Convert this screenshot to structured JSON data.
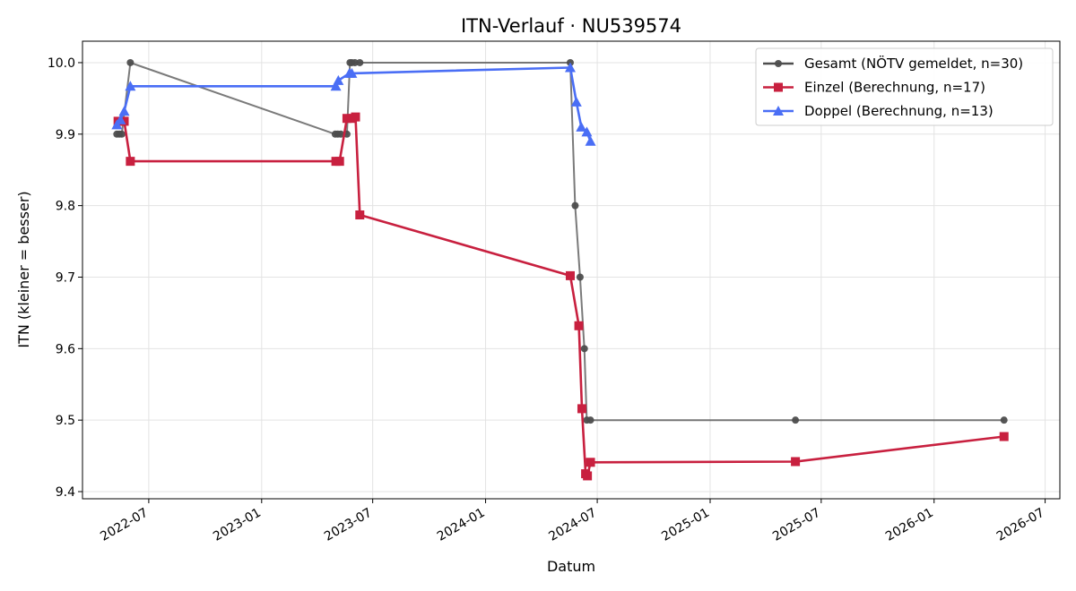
{
  "chart_data": {
    "type": "line",
    "title": "ITN-Verlauf · NU539574",
    "xlabel": "Datum",
    "ylabel": "ITN  (kleiner = besser)",
    "x_type": "date",
    "xlim": [
      "2022-03-15",
      "2026-07-25"
    ],
    "ylim": [
      9.39,
      10.03
    ],
    "x_ticks": [
      "2022-07-01",
      "2023-01-01",
      "2023-07-01",
      "2024-01-01",
      "2024-07-01",
      "2025-01-01",
      "2025-07-01",
      "2026-01-01",
      "2026-07-01"
    ],
    "x_tick_labels": [
      "2022-07",
      "2023-01",
      "2023-07",
      "2024-01",
      "2024-07",
      "2025-01",
      "2025-07",
      "2026-01",
      "2026-07"
    ],
    "y_ticks": [
      9.4,
      9.5,
      9.6,
      9.7,
      9.8,
      9.9,
      10.0
    ],
    "y_tick_labels": [
      "9.4",
      "9.5",
      "9.6",
      "9.7",
      "9.8",
      "9.9",
      "10.0"
    ],
    "grid": true,
    "legend_position": "top-right",
    "series": [
      {
        "name": "Gesamt (NÖTV gemeldet, n=30)",
        "color": "#4d4d4d",
        "marker": "circle",
        "x": [
          "2022-05-10",
          "2022-05-14",
          "2022-05-18",
          "2022-06-01",
          "2023-05-01",
          "2023-05-05",
          "2023-05-10",
          "2023-05-20",
          "2023-05-25",
          "2023-05-28",
          "2023-06-02",
          "2023-06-10",
          "2024-05-18",
          "2024-05-26",
          "2024-06-03",
          "2024-06-10",
          "2024-06-14",
          "2024-06-20",
          "2025-05-20",
          "2026-04-25"
        ],
        "y": [
          9.9,
          9.9,
          9.9,
          10.0,
          9.9,
          9.9,
          9.9,
          9.9,
          10.0,
          10.0,
          10.0,
          10.0,
          10.0,
          9.8,
          9.7,
          9.6,
          9.5,
          9.5,
          9.5,
          9.5
        ]
      },
      {
        "name": "Einzel (Berechnung, n=17)",
        "color": "#c8203f",
        "marker": "square",
        "x": [
          "2022-05-12",
          "2022-05-22",
          "2022-06-01",
          "2023-05-02",
          "2023-05-08",
          "2023-05-20",
          "2023-05-28",
          "2023-06-03",
          "2023-06-10",
          "2024-05-18",
          "2024-06-01",
          "2024-06-06",
          "2024-06-12",
          "2024-06-15",
          "2024-06-20",
          "2025-05-20",
          "2026-04-25"
        ],
        "y": [
          9.918,
          9.918,
          9.862,
          9.862,
          9.862,
          9.922,
          9.922,
          9.924,
          9.787,
          9.702,
          9.632,
          9.516,
          9.425,
          9.422,
          9.441,
          9.442,
          9.477
        ]
      },
      {
        "name": "Doppel (Berechnung, n=13)",
        "color": "#4a6ef5",
        "marker": "triangle",
        "x": [
          "2022-05-10",
          "2022-05-16",
          "2022-05-22",
          "2022-06-01",
          "2023-05-02",
          "2023-05-06",
          "2023-05-24",
          "2023-05-28",
          "2024-05-18",
          "2024-05-28",
          "2024-06-05",
          "2024-06-14",
          "2024-06-20"
        ],
        "y": [
          9.913,
          9.92,
          9.932,
          9.967,
          9.967,
          9.975,
          9.985,
          9.985,
          9.993,
          9.945,
          9.91,
          9.903,
          9.89
        ]
      }
    ]
  }
}
